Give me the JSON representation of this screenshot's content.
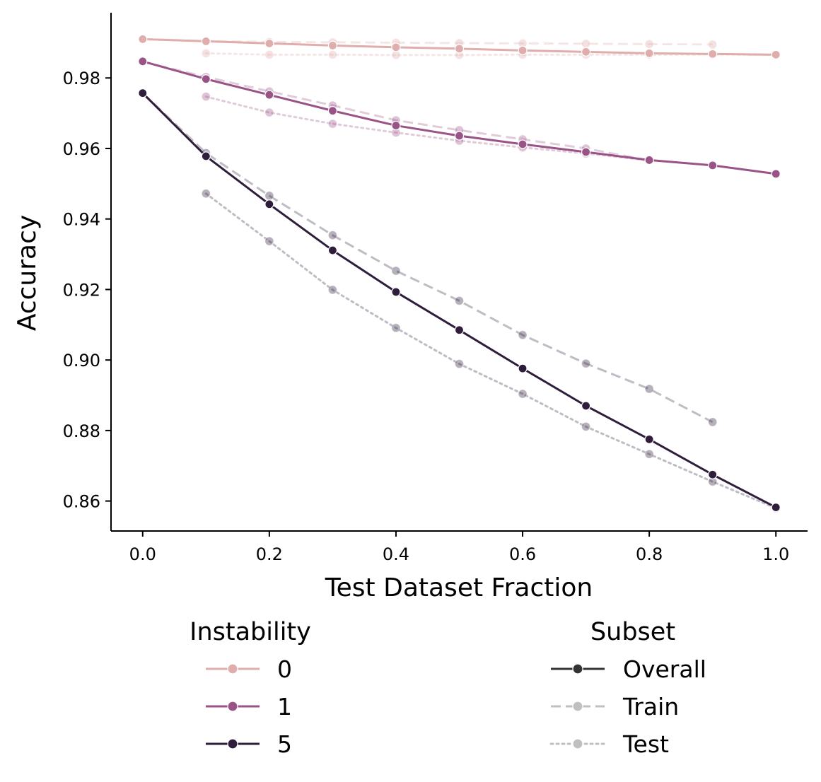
{
  "chart_data": {
    "type": "line",
    "title": "",
    "xlabel": "Test Dataset Fraction",
    "ylabel": "Accuracy",
    "xlim": [
      -0.05,
      1.05
    ],
    "ylim": [
      0.8515,
      0.9985
    ],
    "xticks": [
      0.0,
      0.2,
      0.4,
      0.6,
      0.8,
      1.0
    ],
    "xtick_labels": [
      "0.0",
      "0.2",
      "0.4",
      "0.6",
      "0.8",
      "1.0"
    ],
    "yticks": [
      0.86,
      0.88,
      0.9,
      0.92,
      0.94,
      0.96,
      0.98
    ],
    "ytick_labels": [
      "0.86",
      "0.88",
      "0.90",
      "0.92",
      "0.94",
      "0.96",
      "0.98"
    ],
    "grid": false,
    "legend_position": "bottom",
    "hue_legend": {
      "title": "Instability",
      "entries": [
        {
          "label": "0",
          "color": "#dfadac"
        },
        {
          "label": "1",
          "color": "#9a5387"
        },
        {
          "label": "5",
          "color": "#2e1e3c"
        }
      ]
    },
    "style_legend": {
      "title": "Subset",
      "entries": [
        {
          "label": "Overall",
          "dash": "solid",
          "color": "#333333"
        },
        {
          "label": "Train",
          "dash": "dashed",
          "color": "#c0c0c0"
        },
        {
          "label": "Test",
          "dash": "dotted",
          "color": "#c0c0c0"
        }
      ]
    },
    "series": [
      {
        "name": "0 Train",
        "instability": "0",
        "subset": "Train",
        "color": "#dfadac",
        "x": [
          0.0,
          0.1,
          0.2,
          0.3,
          0.4,
          0.5,
          0.6,
          0.7,
          0.8,
          0.9
        ],
        "values": [
          0.991,
          0.9905,
          0.9902,
          0.9901,
          0.99,
          0.9899,
          0.9898,
          0.9897,
          0.9896,
          0.9895
        ]
      },
      {
        "name": "0 Test",
        "instability": "0",
        "subset": "Test",
        "color": "#dfadac",
        "x": [
          0.1,
          0.2,
          0.3,
          0.4,
          0.5,
          0.6,
          0.7,
          0.8,
          0.9,
          1.0
        ],
        "values": [
          0.987,
          0.9866,
          0.9866,
          0.9865,
          0.9865,
          0.9866,
          0.9866,
          0.9866,
          0.9866,
          0.9866
        ]
      },
      {
        "name": "0 Overall",
        "instability": "0",
        "subset": "Overall",
        "color": "#dfadac",
        "x": [
          0.0,
          0.1,
          0.2,
          0.3,
          0.4,
          0.5,
          0.6,
          0.7,
          0.8,
          0.9,
          1.0
        ],
        "values": [
          0.991,
          0.9904,
          0.9898,
          0.9892,
          0.9887,
          0.9883,
          0.9878,
          0.9874,
          0.987,
          0.9868,
          0.9866
        ]
      },
      {
        "name": "1 Train",
        "instability": "1",
        "subset": "Train",
        "color": "#9a5387",
        "x": [
          0.0,
          0.1,
          0.2,
          0.3,
          0.4,
          0.5,
          0.6,
          0.7,
          0.8
        ],
        "values": [
          0.9846,
          0.9803,
          0.9762,
          0.9722,
          0.968,
          0.9652,
          0.9626,
          0.96,
          0.9566
        ]
      },
      {
        "name": "1 Test",
        "instability": "1",
        "subset": "Test",
        "color": "#9a5387",
        "x": [
          0.1,
          0.2,
          0.3,
          0.4,
          0.5,
          0.6,
          0.7,
          0.8
        ],
        "values": [
          0.9747,
          0.9702,
          0.967,
          0.9645,
          0.9622,
          0.9603,
          0.9586,
          0.9566
        ]
      },
      {
        "name": "1 Overall",
        "instability": "1",
        "subset": "Overall",
        "color": "#9a5387",
        "x": [
          0.0,
          0.1,
          0.2,
          0.3,
          0.4,
          0.5,
          0.6,
          0.7,
          0.8,
          0.9,
          1.0
        ],
        "values": [
          0.9847,
          0.9797,
          0.9752,
          0.9707,
          0.9665,
          0.9636,
          0.9612,
          0.959,
          0.9567,
          0.9552,
          0.9528
        ]
      },
      {
        "name": "5 Train",
        "instability": "5",
        "subset": "Train",
        "color": "#2e1e3c",
        "x": [
          0.0,
          0.1,
          0.2,
          0.3,
          0.4,
          0.5,
          0.6,
          0.7,
          0.8,
          0.9
        ],
        "values": [
          0.9757,
          0.9587,
          0.9466,
          0.9354,
          0.9253,
          0.9168,
          0.9071,
          0.899,
          0.8918,
          0.8824
        ]
      },
      {
        "name": "5 Test",
        "instability": "5",
        "subset": "Test",
        "color": "#2e1e3c",
        "x": [
          0.1,
          0.2,
          0.3,
          0.4,
          0.5,
          0.6,
          0.7,
          0.8,
          0.9,
          1.0
        ],
        "values": [
          0.9472,
          0.9337,
          0.9199,
          0.9091,
          0.8989,
          0.8904,
          0.8811,
          0.8733,
          0.8655,
          0.858
        ]
      },
      {
        "name": "5 Overall",
        "instability": "5",
        "subset": "Overall",
        "color": "#2e1e3c",
        "x": [
          0.0,
          0.1,
          0.2,
          0.3,
          0.4,
          0.5,
          0.6,
          0.7,
          0.8,
          0.9,
          1.0
        ],
        "values": [
          0.9757,
          0.9578,
          0.9442,
          0.9311,
          0.9193,
          0.9085,
          0.8976,
          0.887,
          0.8775,
          0.8675,
          0.8582
        ]
      }
    ]
  }
}
